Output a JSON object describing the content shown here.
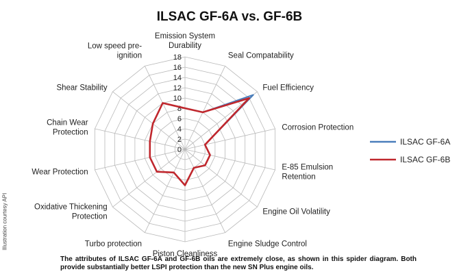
{
  "chart_data": {
    "type": "radar",
    "title": "ILSAC GF-6A vs. GF-6B",
    "axes": [
      [
        "Emission System",
        "Durability"
      ],
      [
        "Seal Compatability"
      ],
      [
        "Fuel Efficiency"
      ],
      [
        "Corrosion Protection"
      ],
      [
        "E-85 Emulsion",
        "Retention"
      ],
      [
        "Engine Oil Volatility"
      ],
      [
        "Engine Sludge Control"
      ],
      [
        "Piston Cleanliness"
      ],
      [
        "Turbo protection"
      ],
      [
        "Oxidative Thickening",
        "Protection"
      ],
      [
        "Wear Protection"
      ],
      [
        "Chain Wear",
        "Protection"
      ],
      [
        "Shear Stability"
      ],
      [
        "Low speed pre-",
        "ignition"
      ]
    ],
    "r_ticks": [
      "0",
      "2",
      "4",
      "6",
      "8",
      "10",
      "12",
      "14",
      "16",
      "18"
    ],
    "r_range": [
      0,
      18
    ],
    "series": [
      {
        "name": "ILSAC GF-6A",
        "color": "#4a7ebb",
        "values": [
          8,
          8,
          17,
          4,
          5,
          5,
          4,
          7,
          5,
          7,
          7,
          7,
          8,
          10
        ]
      },
      {
        "name": "ILSAC GF-6B",
        "color": "#c0272d",
        "values": [
          8,
          8,
          16,
          4,
          5,
          5,
          4,
          7,
          5,
          7,
          7,
          7,
          8,
          10
        ]
      }
    ],
    "legend_position": "right"
  },
  "credit": "Illustration courtesy API",
  "caption": "The attributes of ILSAC GF-6A and GF-6B oils are extremely close, as shown in this spider diagram. Both provide substantially better LSPI protection than the new SN Plus engine oils."
}
